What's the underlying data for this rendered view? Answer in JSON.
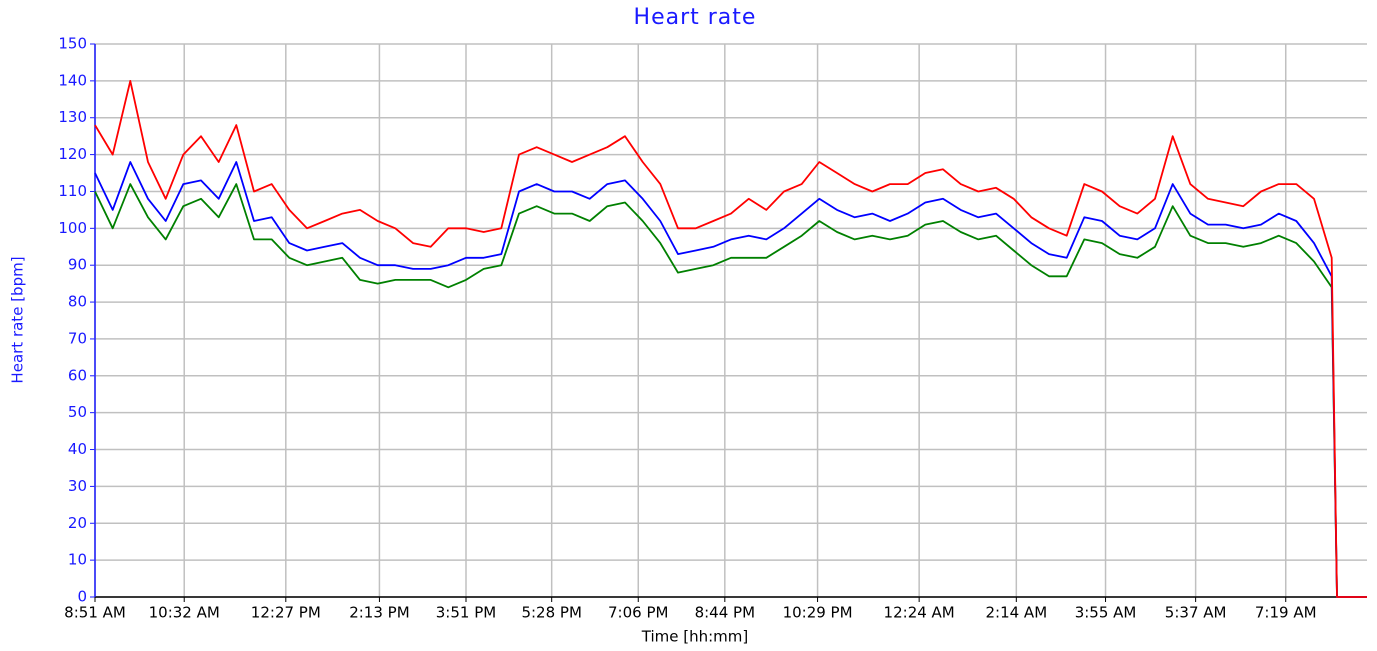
{
  "chart_data": {
    "type": "line",
    "title": "Heart rate",
    "x_label": "Time [hh:mm]",
    "y_label": "Heart rate [bpm]",
    "x": [
      0,
      20,
      40,
      60,
      80,
      100,
      120,
      140,
      160,
      180,
      200,
      220,
      240,
      260,
      280,
      300,
      320,
      340,
      360,
      380,
      400,
      420,
      440,
      460,
      480,
      500,
      520,
      540,
      560,
      580,
      600,
      620,
      640,
      660,
      680,
      700,
      720,
      740,
      760,
      780,
      800,
      820,
      840,
      860,
      880,
      900,
      920,
      940,
      960,
      980,
      1000,
      1020,
      1040,
      1060,
      1080,
      1100,
      1120,
      1140,
      1160,
      1180,
      1200,
      1220,
      1240,
      1260,
      1280,
      1300,
      1320,
      1340,
      1360,
      1380,
      1400,
      1406,
      1440
    ],
    "series": [
      {
        "color": "#008000",
        "values": [
          110,
          100,
          112,
          103,
          97,
          106,
          108,
          103,
          112,
          97,
          97,
          92,
          90,
          91,
          92,
          86,
          85,
          86,
          86,
          86,
          84,
          86,
          89,
          90,
          104,
          106,
          104,
          104,
          102,
          106,
          107,
          102,
          96,
          88,
          89,
          90,
          92,
          92,
          92,
          95,
          98,
          102,
          99,
          97,
          98,
          97,
          98,
          101,
          102,
          99,
          97,
          98,
          94,
          90,
          87,
          87,
          97,
          96,
          93,
          92,
          95,
          106,
          98,
          96,
          96,
          95,
          96,
          98,
          96,
          91,
          84,
          0,
          0
        ]
      },
      {
        "color": "#0000ff",
        "values": [
          115,
          105,
          118,
          108,
          102,
          112,
          113,
          108,
          118,
          102,
          103,
          96,
          94,
          95,
          96,
          92,
          90,
          90,
          89,
          89,
          90,
          92,
          92,
          93,
          110,
          112,
          110,
          110,
          108,
          112,
          113,
          108,
          102,
          93,
          94,
          95,
          97,
          98,
          97,
          100,
          104,
          108,
          105,
          103,
          104,
          102,
          104,
          107,
          108,
          105,
          103,
          104,
          100,
          96,
          93,
          92,
          103,
          102,
          98,
          97,
          100,
          112,
          104,
          101,
          101,
          100,
          101,
          104,
          102,
          96,
          87,
          0,
          0
        ]
      },
      {
        "color": "#ff0000",
        "values": [
          128,
          120,
          140,
          118,
          108,
          120,
          125,
          118,
          128,
          110,
          112,
          105,
          100,
          102,
          104,
          105,
          102,
          100,
          96,
          95,
          100,
          100,
          99,
          100,
          120,
          122,
          120,
          118,
          120,
          122,
          125,
          118,
          112,
          100,
          100,
          102,
          104,
          108,
          105,
          110,
          112,
          118,
          115,
          112,
          110,
          112,
          112,
          115,
          116,
          112,
          110,
          111,
          108,
          103,
          100,
          98,
          112,
          110,
          106,
          104,
          108,
          125,
          112,
          108,
          107,
          106,
          110,
          112,
          112,
          108,
          92,
          0,
          0
        ]
      }
    ],
    "xlim": [
      0,
      1440
    ],
    "xticks": [
      {
        "value": 0,
        "label": "8:51 AM"
      },
      {
        "value": 101,
        "label": "10:32 AM"
      },
      {
        "value": 216,
        "label": "12:27 PM"
      },
      {
        "value": 322,
        "label": "2:13 PM"
      },
      {
        "value": 420,
        "label": "3:51 PM"
      },
      {
        "value": 517,
        "label": "5:28 PM"
      },
      {
        "value": 615,
        "label": "7:06 PM"
      },
      {
        "value": 713,
        "label": "8:44 PM"
      },
      {
        "value": 818,
        "label": "10:29 PM"
      },
      {
        "value": 933,
        "label": "12:24 AM"
      },
      {
        "value": 1043,
        "label": "2:14 AM"
      },
      {
        "value": 1144,
        "label": "3:55 AM"
      },
      {
        "value": 1246,
        "label": "5:37 AM"
      },
      {
        "value": 1348,
        "label": "7:19 AM"
      }
    ],
    "ylim": [
      0,
      150
    ],
    "yticks": [
      0,
      10,
      20,
      30,
      40,
      50,
      60,
      70,
      80,
      90,
      100,
      110,
      120,
      130,
      140,
      150
    ],
    "grid": true
  }
}
